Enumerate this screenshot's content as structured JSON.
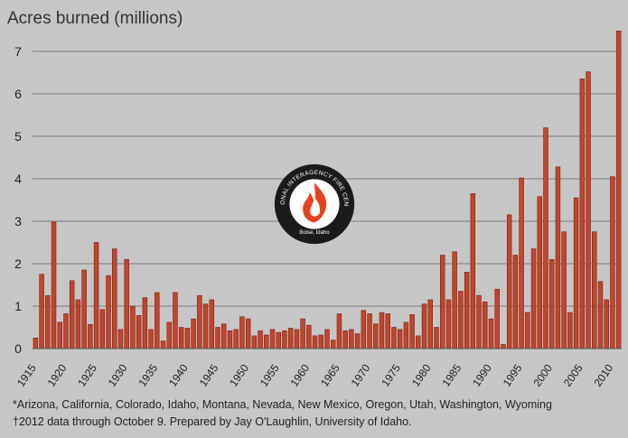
{
  "colors": {
    "background": "#c6c6c6",
    "bar_fill": "#c2452c",
    "bar_stroke": "#7a1f10",
    "gridline": "#7c7c7c",
    "logo_ring": "#1a1a1a",
    "logo_flame": "#e0441f"
  },
  "logo": {
    "ring_text": "NATIONAL INTERAGENCY FIRE CENTER",
    "est_text": "Boise, Idaho",
    "icon": "flame-icon"
  },
  "footnotes": {
    "line1": "*Arizona, California, Colorado, Idaho, Montana, Nevada, New Mexico, Oregon, Utah, Washington, Wyoming",
    "line2": "†2012 data through October 9. Prepared by Jay O'Laughlin, University of Idaho."
  },
  "chart_data": {
    "type": "bar",
    "title": "",
    "ylabel": "Acres burned (millions)",
    "xlabel": "",
    "ylim": [
      0,
      7.7
    ],
    "yticks": [
      0,
      1,
      2,
      3,
      4,
      5,
      6,
      7
    ],
    "grid": "horizontal",
    "xticks": [
      "1915",
      "1920",
      "1925",
      "1930",
      "1935",
      "1940",
      "1945",
      "1950",
      "1955",
      "1960",
      "1965",
      "1970",
      "1975",
      "1980",
      "1985",
      "1990",
      "1995",
      "2000",
      "2005",
      "2010"
    ],
    "x_start": 1916,
    "x_end": 2012,
    "values": [
      0.25,
      1.75,
      1.25,
      2.98,
      0.62,
      0.82,
      1.6,
      1.15,
      1.85,
      0.57,
      2.5,
      0.92,
      1.72,
      2.35,
      0.45,
      2.1,
      1.0,
      0.78,
      1.2,
      0.45,
      1.32,
      0.18,
      0.62,
      1.32,
      0.5,
      0.48,
      0.7,
      1.25,
      1.05,
      1.15,
      0.5,
      0.58,
      0.42,
      0.45,
      0.75,
      0.7,
      0.3,
      0.42,
      0.32,
      0.45,
      0.38,
      0.42,
      0.48,
      0.45,
      0.7,
      0.55,
      0.3,
      0.32,
      0.45,
      0.2,
      0.82,
      0.42,
      0.45,
      0.35,
      0.9,
      0.82,
      0.58,
      0.85,
      0.82,
      0.5,
      0.45,
      0.62,
      0.8,
      0.3,
      1.05,
      1.15,
      0.5,
      2.2,
      1.15,
      2.28,
      1.35,
      1.8,
      3.65,
      1.25,
      1.1,
      0.7,
      1.4,
      0.1,
      3.15,
      2.2,
      4.02,
      0.85,
      2.35,
      3.58,
      5.2,
      2.1,
      4.28,
      2.75,
      0.85,
      3.55,
      6.35,
      6.52,
      2.75,
      1.58,
      1.15,
      4.05,
      7.48
    ]
  }
}
